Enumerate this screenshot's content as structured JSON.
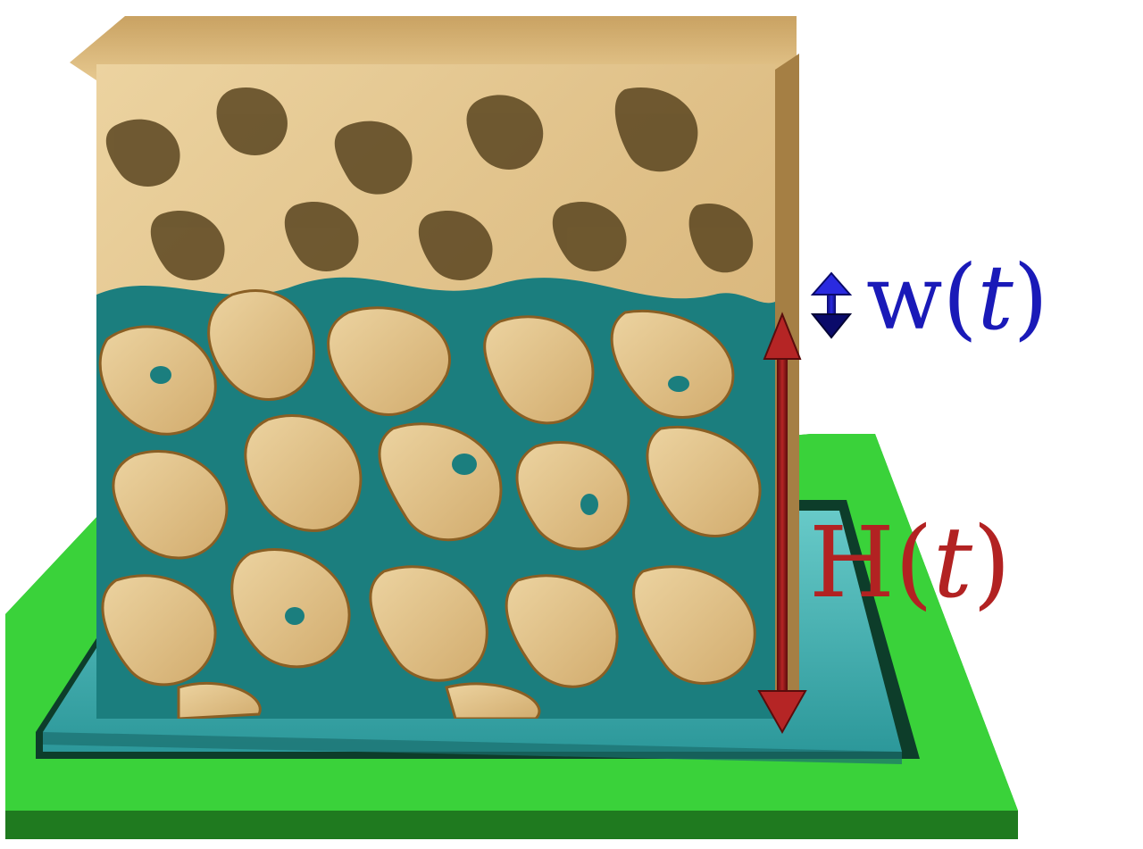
{
  "labels": {
    "width_label": "w(",
    "width_var": "t",
    "width_close": ")",
    "height_label": "H(",
    "height_var": "t",
    "height_close": ")"
  },
  "colors": {
    "tray_green": "#33c933",
    "tray_dark_green": "#1f7a1f",
    "liquid": "#1e8a8a",
    "liquid_surface": "#4fc3c8",
    "solid": "#e0c18c",
    "solid_shadow": "#a67c3c",
    "height_arrow": "#8b1a1a",
    "width_arrow": "#1414a8",
    "width_text": "#1a1ab8",
    "height_text": "#b22222"
  }
}
